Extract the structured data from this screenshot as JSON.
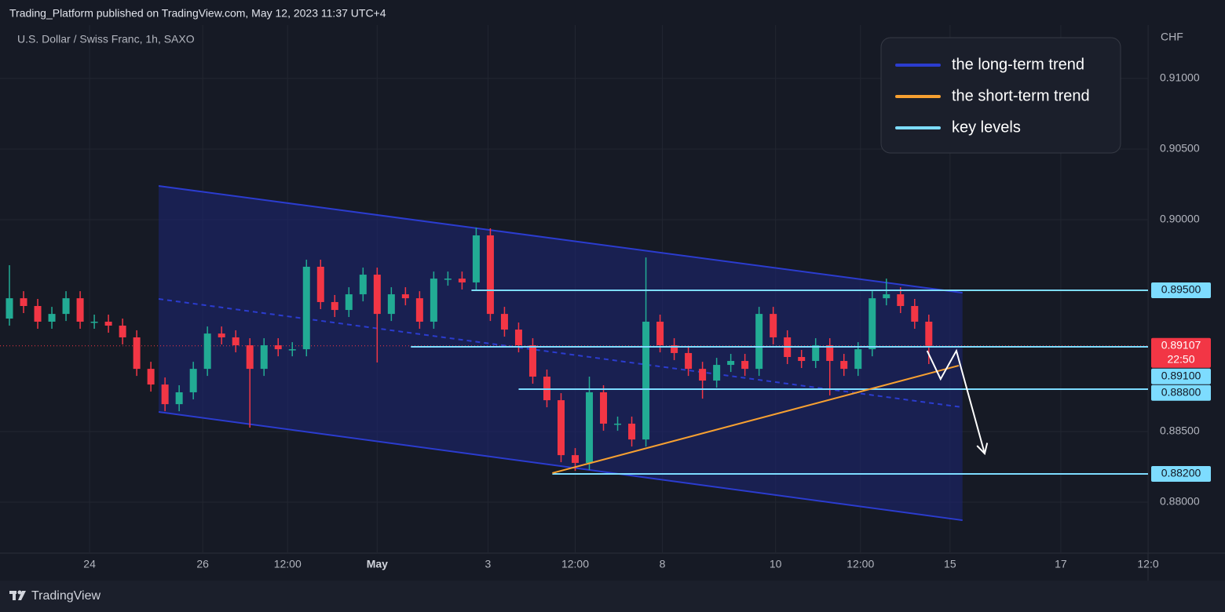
{
  "chart_data": {
    "type": "candlestick",
    "title": "Trading_Platform published on TradingView.com, May 12, 2023 11:37 UTC+4",
    "subtitle": "U.S. Dollar / Swiss Franc, 1h, SAXO",
    "brand": "TradingView",
    "y_unit": "CHF",
    "up_color": "#22ab94",
    "down_color": "#f23645",
    "grid": true,
    "xlim": [
      0,
      487
    ],
    "xticks": [
      {
        "value": 38,
        "label": "24"
      },
      {
        "value": 86,
        "label": "26"
      },
      {
        "value": 122,
        "label": "12:00"
      },
      {
        "value": 160,
        "label": "May"
      },
      {
        "value": 207,
        "label": "3"
      },
      {
        "value": 244,
        "label": "12:00"
      },
      {
        "value": 281,
        "label": "8"
      },
      {
        "value": 329,
        "label": "10"
      },
      {
        "value": 365,
        "label": "12:00"
      },
      {
        "value": 403,
        "label": "15"
      },
      {
        "value": 450,
        "label": "17"
      },
      {
        "value": 487,
        "label": "12:0"
      }
    ],
    "ylim": [
      0.87639,
      0.91378
    ],
    "yticks": [
      {
        "value": 0.91,
        "label": "0.91000"
      },
      {
        "value": 0.905,
        "label": "0.90500"
      },
      {
        "value": 0.9,
        "label": "0.90000"
      },
      {
        "value": 0.885,
        "label": "0.88500"
      },
      {
        "value": 0.88,
        "label": "0.88000"
      }
    ],
    "x": [
      4,
      10,
      16,
      22,
      28,
      34,
      40,
      46,
      52,
      58,
      64,
      70,
      76,
      82,
      88,
      94,
      100,
      106,
      112,
      118,
      124,
      130,
      136,
      142,
      148,
      154,
      160,
      166,
      172,
      178,
      184,
      190,
      196,
      202,
      208,
      214,
      220,
      226,
      232,
      238,
      244,
      250,
      256,
      262,
      268,
      274,
      280,
      286,
      292,
      298,
      304,
      310,
      316,
      322,
      328,
      334,
      340,
      346,
      352,
      358,
      364,
      370,
      376,
      382,
      388,
      394
    ],
    "open": [
      0.893,
      0.89444,
      0.89389,
      0.89278,
      0.89333,
      0.89444,
      0.89278,
      0.89278,
      0.8925,
      0.89167,
      0.88944,
      0.88833,
      0.88694,
      0.88778,
      0.88944,
      0.89194,
      0.89167,
      0.89111,
      0.88944,
      0.89111,
      0.89083,
      0.89083,
      0.89667,
      0.89417,
      0.89361,
      0.89472,
      0.89611,
      0.89333,
      0.89472,
      0.89444,
      0.89278,
      0.89583,
      0.89583,
      0.89556,
      0.89889,
      0.89333,
      0.89222,
      0.89111,
      0.88889,
      0.88722,
      0.88333,
      0.88278,
      0.88778,
      0.88556,
      0.88556,
      0.88444,
      0.89278,
      0.89111,
      0.89056,
      0.88944,
      0.88861,
      0.88972,
      0.89,
      0.88944,
      0.89333,
      0.89167,
      0.89028,
      0.89,
      0.89111,
      0.89,
      0.88944,
      0.89083,
      0.89444,
      0.89472,
      0.89389,
      0.89278
    ],
    "high": [
      0.89678,
      0.89494,
      0.89439,
      0.89383,
      0.89494,
      0.89494,
      0.89328,
      0.89328,
      0.893,
      0.89217,
      0.88994,
      0.88883,
      0.88828,
      0.88994,
      0.89244,
      0.89244,
      0.89217,
      0.89161,
      0.89161,
      0.89161,
      0.89133,
      0.89717,
      0.89717,
      0.89467,
      0.89522,
      0.89661,
      0.89661,
      0.89522,
      0.89522,
      0.89494,
      0.89633,
      0.89633,
      0.89633,
      0.89944,
      0.89939,
      0.89383,
      0.89272,
      0.89161,
      0.88939,
      0.88772,
      0.88383,
      0.88889,
      0.88828,
      0.88606,
      0.88606,
      0.89733,
      0.89328,
      0.89161,
      0.89106,
      0.88994,
      0.89022,
      0.8905,
      0.8905,
      0.89383,
      0.89383,
      0.89217,
      0.89078,
      0.89161,
      0.89161,
      0.8905,
      0.89133,
      0.89494,
      0.89583,
      0.89522,
      0.89439,
      0.89328
    ],
    "low": [
      0.8925,
      0.89339,
      0.89228,
      0.89228,
      0.89283,
      0.89228,
      0.89228,
      0.892,
      0.89117,
      0.88894,
      0.88783,
      0.88644,
      0.88644,
      0.88728,
      0.88894,
      0.89117,
      0.89061,
      0.88528,
      0.88894,
      0.89033,
      0.89033,
      0.89033,
      0.89367,
      0.89311,
      0.89311,
      0.89422,
      0.88989,
      0.89283,
      0.89394,
      0.89228,
      0.89228,
      0.89533,
      0.89506,
      0.89506,
      0.89283,
      0.89172,
      0.89061,
      0.88839,
      0.88672,
      0.88283,
      0.88222,
      0.88228,
      0.88506,
      0.88506,
      0.88394,
      0.88394,
      0.89061,
      0.89006,
      0.88894,
      0.88733,
      0.88811,
      0.88922,
      0.88894,
      0.88894,
      0.89117,
      0.88978,
      0.8895,
      0.8895,
      0.88756,
      0.88894,
      0.88894,
      0.89033,
      0.89394,
      0.89339,
      0.89228,
      0.88978
    ],
    "close": [
      0.89444,
      0.89389,
      0.89278,
      0.89333,
      0.89444,
      0.89278,
      0.89278,
      0.8925,
      0.89167,
      0.88944,
      0.88833,
      0.88694,
      0.88778,
      0.88944,
      0.89194,
      0.89167,
      0.89111,
      0.88944,
      0.89111,
      0.89083,
      0.89083,
      0.89667,
      0.89417,
      0.89361,
      0.89472,
      0.89611,
      0.89333,
      0.89472,
      0.89444,
      0.89278,
      0.89583,
      0.89583,
      0.89556,
      0.89889,
      0.89333,
      0.89222,
      0.89111,
      0.88889,
      0.88722,
      0.88333,
      0.88278,
      0.88778,
      0.88556,
      0.88556,
      0.88444,
      0.89278,
      0.89111,
      0.89056,
      0.88944,
      0.88861,
      0.88972,
      0.89,
      0.88944,
      0.89333,
      0.89167,
      0.89028,
      0.89,
      0.89111,
      0.89,
      0.88944,
      0.89083,
      0.89444,
      0.89472,
      0.89389,
      0.89278,
      0.89107
    ],
    "legend": [
      {
        "name": "the long-term trend",
        "color": "#2b3ccf"
      },
      {
        "name": "the short-term trend",
        "color": "#f7a031"
      },
      {
        "name": "key levels",
        "color": "#7ddcff"
      }
    ],
    "channel": {
      "x": [
        67.3,
        408.3
      ],
      "upper": [
        0.90239,
        0.89483
      ],
      "middle": [
        0.89439,
        0.88672
      ],
      "lower": [
        0.88639,
        0.87872
      ]
    },
    "trend_line": {
      "x": [
        234.3,
        406.7
      ],
      "values": [
        0.88206,
        0.88967
      ]
    },
    "projection": {
      "x": [
        393.3,
        399,
        405.7,
        417.7
      ],
      "values": [
        0.89072,
        0.88872,
        0.89072,
        0.88344
      ]
    },
    "key_levels": [
      {
        "value": 0.895,
        "label": "0.89500",
        "x_start": 200
      },
      {
        "value": 0.891,
        "label": "0.89100",
        "x_start": 174.3
      },
      {
        "value": 0.888,
        "label": "0.88800",
        "x_start": 220
      },
      {
        "value": 0.882,
        "label": "0.88200",
        "x_start": 234.3
      }
    ],
    "last_price": {
      "value": 0.89107,
      "label": "0.89107",
      "countdown": "22:50"
    }
  }
}
